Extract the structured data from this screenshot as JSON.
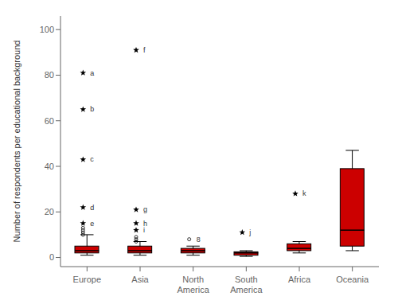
{
  "chart_data": {
    "type": "box",
    "ylabel": "Number of respondents per educational background",
    "categories": [
      "Europe",
      "Asia",
      "North\nAmerica",
      "South\nAmerica",
      "Africa",
      "Oceania"
    ],
    "boxes": [
      {
        "q1": 2,
        "median": 3,
        "q3": 5,
        "whisker_low": 1,
        "whisker_high": 10
      },
      {
        "q1": 2,
        "median": 3,
        "q3": 5,
        "whisker_low": 1,
        "whisker_high": 7
      },
      {
        "q1": 2,
        "median": 3,
        "q3": 4,
        "whisker_low": 1,
        "whisker_high": 5
      },
      {
        "q1": 1,
        "median": 2,
        "q3": 2.5,
        "whisker_low": 0.5,
        "whisker_high": 3
      },
      {
        "q1": 3,
        "median": 4,
        "q3": 6,
        "whisker_low": 2,
        "whisker_high": 7
      },
      {
        "q1": 5,
        "median": 12,
        "q3": 39,
        "whisker_low": 3,
        "whisker_high": 47
      }
    ],
    "outliers": [
      [
        {
          "y": 81,
          "marker": "star",
          "label": "a"
        },
        {
          "y": 65,
          "marker": "star",
          "label": "b"
        },
        {
          "y": 43,
          "marker": "star",
          "label": "c"
        },
        {
          "y": 22,
          "marker": "star",
          "label": "d"
        },
        {
          "y": 15,
          "marker": "star",
          "label": "e"
        },
        {
          "y": 13,
          "marker": "circle"
        },
        {
          "y": 12,
          "marker": "circle"
        },
        {
          "y": 11,
          "marker": "circle"
        },
        {
          "y": 10,
          "marker": "circle"
        }
      ],
      [
        {
          "y": 91,
          "marker": "star",
          "label": "f"
        },
        {
          "y": 21,
          "marker": "star",
          "label": "g"
        },
        {
          "y": 15,
          "marker": "star",
          "label": "h"
        },
        {
          "y": 12,
          "marker": "star",
          "label": "i"
        },
        {
          "y": 9,
          "marker": "circle"
        },
        {
          "y": 8,
          "marker": "circle"
        },
        {
          "y": 7,
          "marker": "circle"
        }
      ],
      [
        {
          "y": 8,
          "marker": "circle",
          "label": "8"
        }
      ],
      [
        {
          "y": 11,
          "marker": "star",
          "label": "j"
        }
      ],
      [
        {
          "y": 28,
          "marker": "star",
          "label": "k"
        }
      ],
      []
    ],
    "color": "#CC0000",
    "ylim": [
      -4,
      106
    ],
    "yticks": [
      0,
      20,
      40,
      60,
      80,
      100
    ],
    "grid": false
  }
}
